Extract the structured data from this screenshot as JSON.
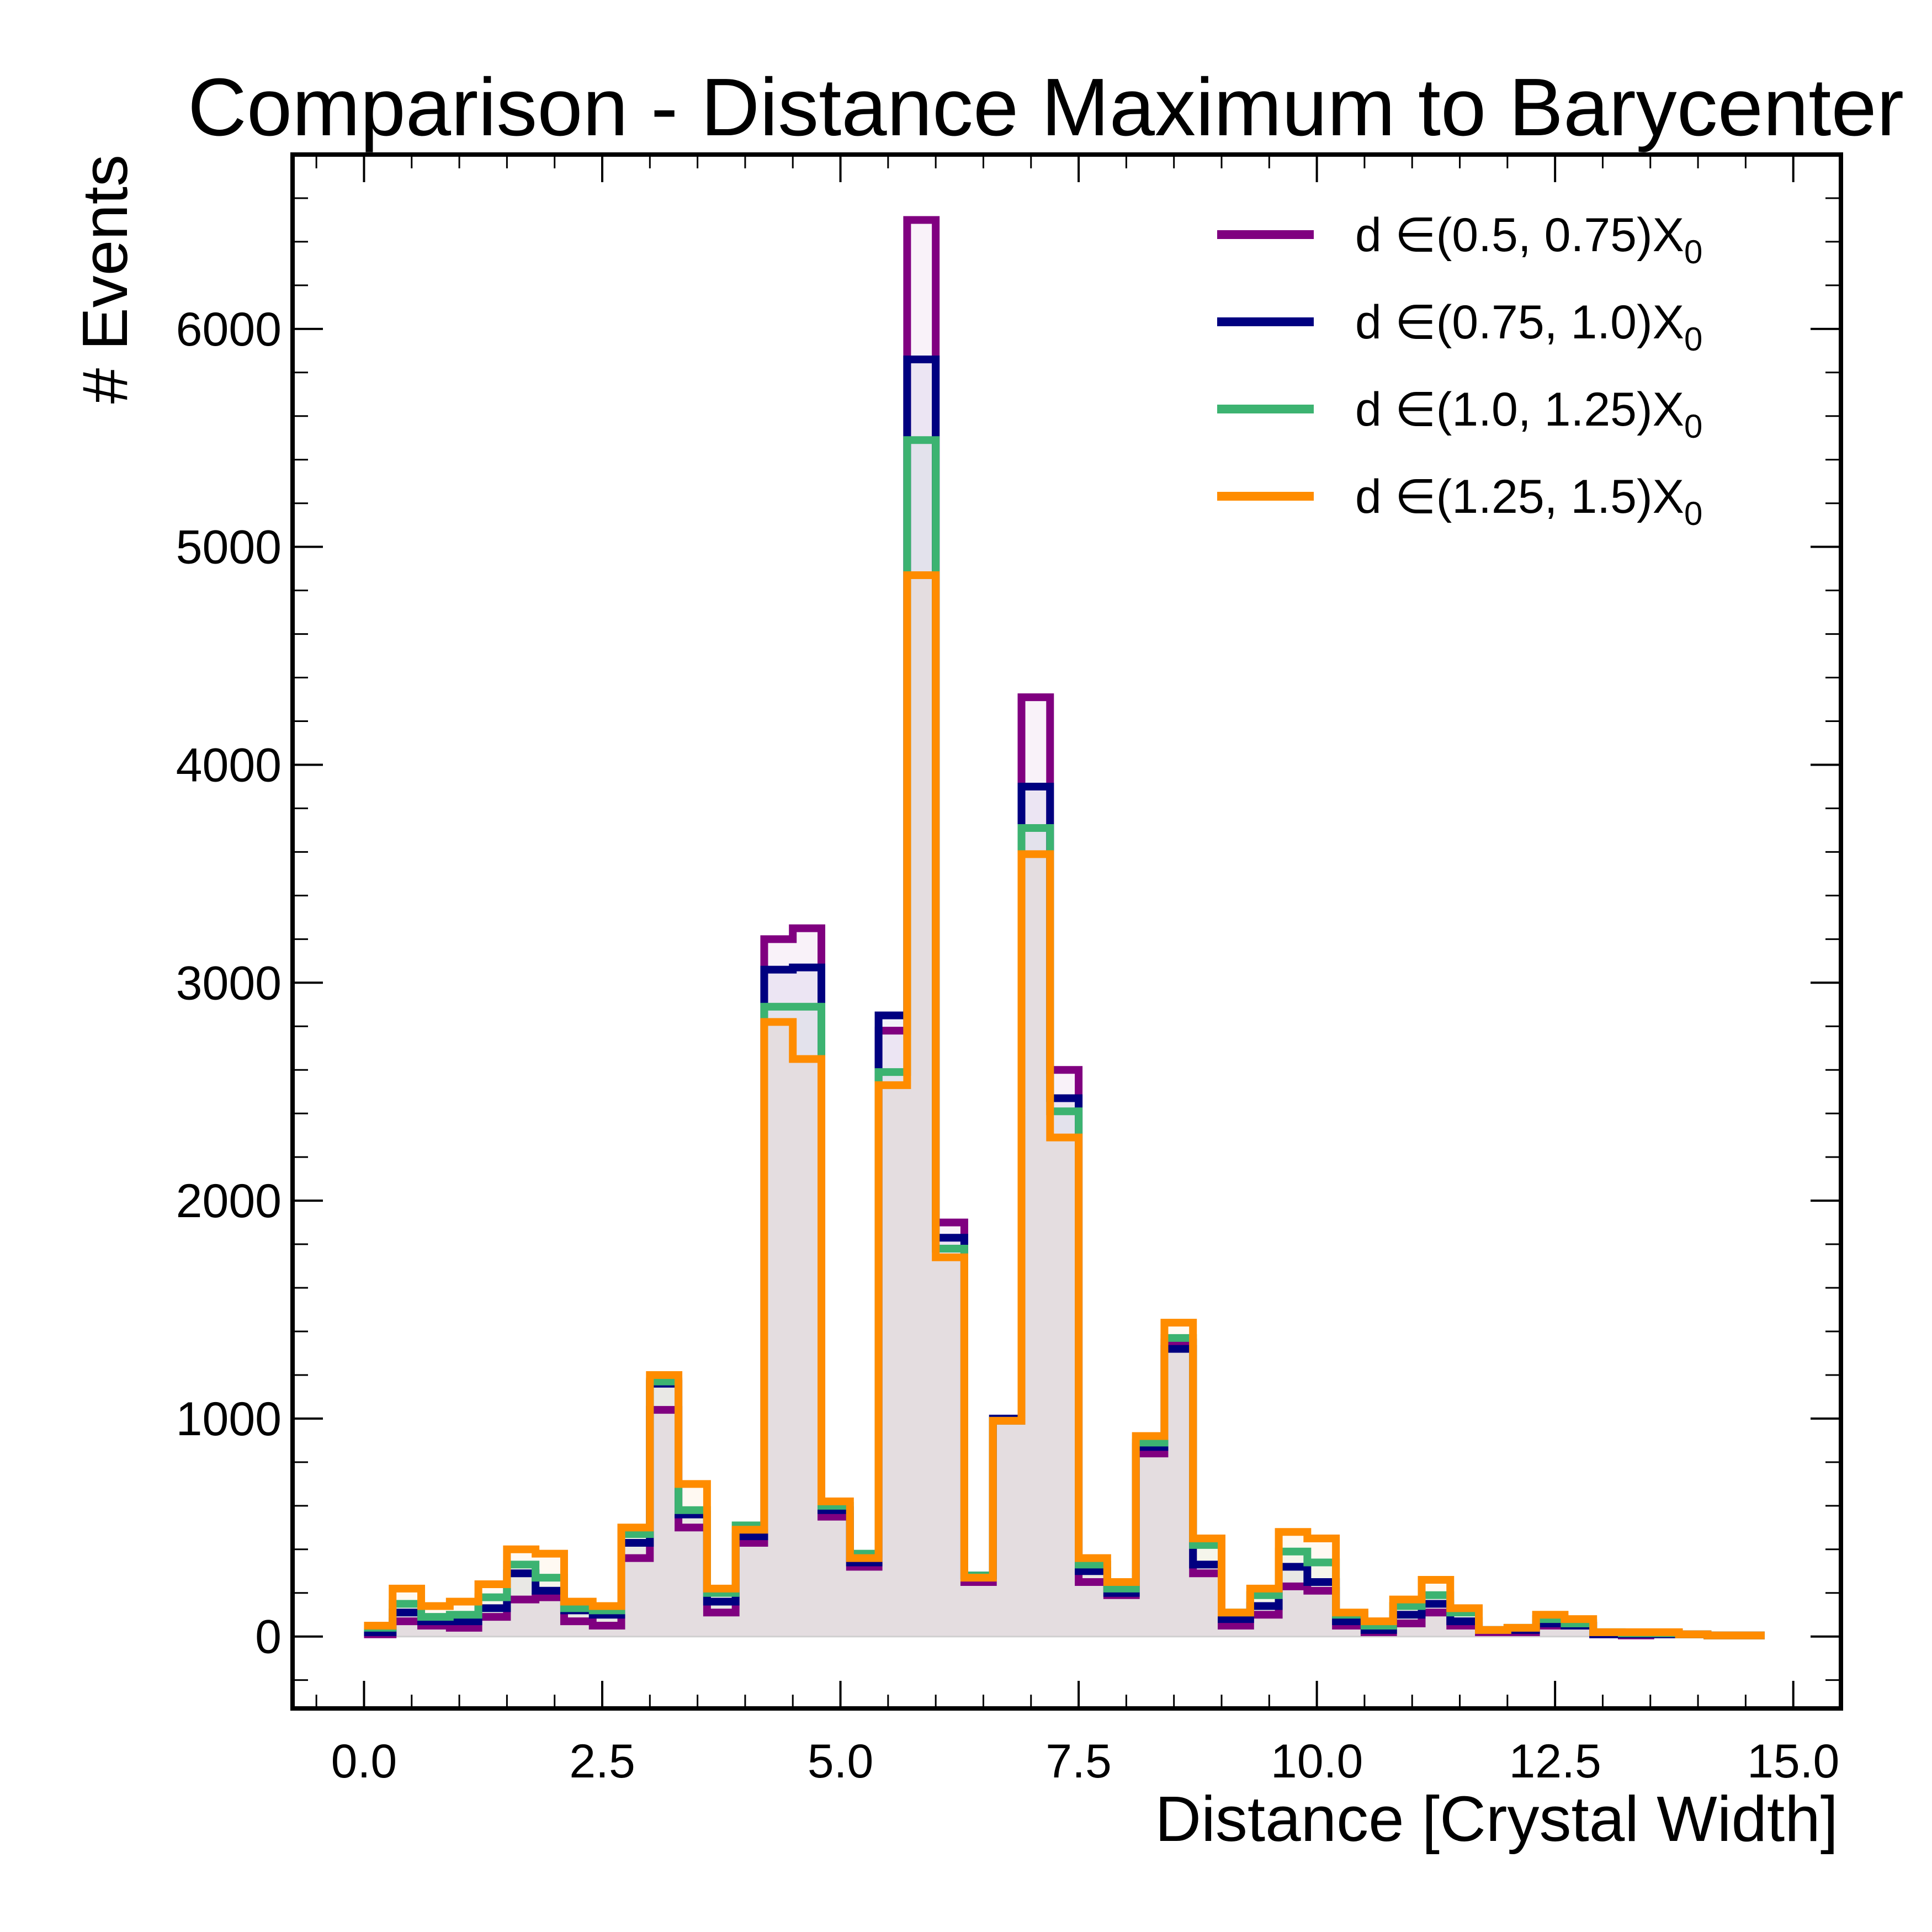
{
  "chart_data": {
    "type": "histogram",
    "title": "Comparison - Distance Maximum to Barycenter",
    "xlabel": "Distance [Crystal Width]",
    "ylabel": "# Events",
    "xlim": [
      -0.75,
      15.5
    ],
    "ylim": [
      -330,
      6800
    ],
    "x_ticks": [
      0.0,
      2.5,
      5.0,
      7.5,
      10.0,
      12.5,
      15.0
    ],
    "x_tick_labels": [
      "0.0",
      "2.5",
      "5.0",
      "7.5",
      "10.0",
      "12.5",
      "15.0"
    ],
    "y_ticks": [
      0,
      1000,
      2000,
      3000,
      4000,
      5000,
      6000
    ],
    "y_tick_labels": [
      "0",
      "1000",
      "2000",
      "3000",
      "4000",
      "5000",
      "6000"
    ],
    "grid": false,
    "legend_position": "top-right",
    "bin_edges": [
      0.0,
      0.3,
      0.6,
      0.9,
      1.2,
      1.5,
      1.8,
      2.1,
      2.4,
      2.7,
      3.0,
      3.3,
      3.6,
      3.9,
      4.2,
      4.5,
      4.8,
      5.1,
      5.4,
      5.7,
      6.0,
      6.3,
      6.6,
      6.9,
      7.2,
      7.5,
      7.8,
      8.1,
      8.4,
      8.7,
      9.0,
      9.3,
      9.6,
      9.9,
      10.2,
      10.5,
      10.8,
      11.1,
      11.4,
      11.7,
      12.0,
      12.3,
      12.6,
      12.9,
      13.2,
      13.5,
      13.8,
      14.1,
      14.4,
      14.7
    ],
    "series": [
      {
        "name": "d ∈(0.5, 0.75)X",
        "subscript": "0",
        "color": "#800080",
        "values": [
          10,
          70,
          50,
          40,
          90,
          170,
          180,
          70,
          50,
          360,
          1040,
          500,
          110,
          430,
          3200,
          3250,
          550,
          320,
          2780,
          6500,
          1900,
          250,
          990,
          4310,
          2600,
          250,
          190,
          840,
          1350,
          290,
          50,
          100,
          230,
          210,
          50,
          20,
          60,
          110,
          50,
          20,
          20,
          50,
          50,
          10,
          5,
          10,
          10,
          5,
          5
        ]
      },
      {
        "name": "d ∈(0.75, 1.0)X",
        "subscript": "0",
        "color": "#000080",
        "values": [
          20,
          110,
          70,
          70,
          130,
          290,
          210,
          120,
          100,
          430,
          1160,
          560,
          160,
          460,
          3060,
          3070,
          580,
          340,
          2850,
          5860,
          1830,
          280,
          1000,
          3900,
          2470,
          300,
          200,
          870,
          1320,
          330,
          80,
          140,
          320,
          250,
          70,
          30,
          100,
          150,
          70,
          30,
          30,
          60,
          50,
          10,
          10,
          10,
          10,
          5,
          5
        ]
      },
      {
        "name": "d ∈(1.0, 1.25)X",
        "subscript": "0",
        "color": "#3cb371",
        "values": [
          40,
          150,
          90,
          100,
          180,
          330,
          270,
          130,
          120,
          470,
          1170,
          580,
          200,
          510,
          2890,
          2890,
          600,
          380,
          2590,
          5490,
          1780,
          280,
          990,
          3710,
          2410,
          330,
          220,
          890,
          1370,
          420,
          110,
          190,
          390,
          340,
          100,
          50,
          140,
          190,
          110,
          30,
          40,
          80,
          60,
          20,
          15,
          15,
          10,
          5,
          5
        ]
      },
      {
        "name": "d ∈(1.25, 1.5)X",
        "subscript": "0",
        "color": "#ff8c00",
        "values": [
          50,
          220,
          140,
          160,
          240,
          400,
          380,
          160,
          140,
          500,
          1200,
          700,
          220,
          490,
          2820,
          2650,
          620,
          360,
          2530,
          4870,
          1740,
          270,
          990,
          3590,
          2290,
          360,
          250,
          920,
          1440,
          450,
          110,
          220,
          480,
          450,
          110,
          70,
          170,
          260,
          130,
          30,
          40,
          100,
          80,
          20,
          20,
          20,
          10,
          5,
          5
        ]
      }
    ]
  }
}
